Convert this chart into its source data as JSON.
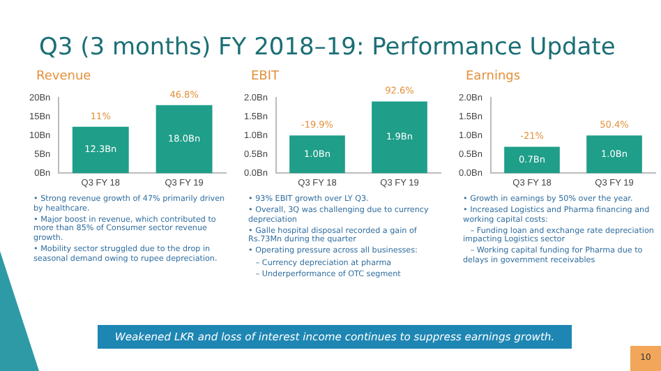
{
  "chart_data": [
    {
      "type": "other",
      "title": "Q3 (3 months) FY 2018–19: Performance Update",
      "annotations": [
        "Weakened LKR and loss of interest income continues to suppress earnings growth.",
        "10"
      ]
    },
    {
      "type": "bar",
      "title": "Revenue",
      "categories": [
        "Q3 FY 18",
        "Q3 FY 19"
      ],
      "values": [
        12.3,
        18.0
      ],
      "color": "#1f9e89",
      "ylim": [
        0,
        20
      ],
      "yticks": [
        {
          "value": 0,
          "label": "0Bn"
        },
        {
          "value": 5,
          "label": "5Bn"
        },
        {
          "value": 10,
          "label": "10Bn"
        },
        {
          "value": 15,
          "label": "15Bn"
        },
        {
          "value": 20,
          "label": "20Bn"
        }
      ],
      "value_labels": [
        "12.3Bn",
        "18.0Bn"
      ],
      "grid": false,
      "legend": false,
      "annotations": [
        {
          "text": "11%",
          "x": "Q3 FY 18",
          "y": 12.3
        },
        {
          "text": "46.8%",
          "x": "Q3 FY 19",
          "y": 18.0
        },
        "• Strong revenue growth of 47% primarily driven by healthcare.",
        "• Major boost in revenue, which contributed to more than 85% of Consumer sector revenue growth.",
        "• Mobility sector struggled due to the drop in seasonal demand owing to rupee depreciation."
      ]
    },
    {
      "type": "bar",
      "title": "EBIT",
      "categories": [
        "Q3 FY 18",
        "Q3 FY 19"
      ],
      "values": [
        1.0,
        1.9
      ],
      "color": "#1f9e89",
      "ylim": [
        0,
        2
      ],
      "yticks": [
        {
          "value": 0,
          "label": "0.0Bn"
        },
        {
          "value": 0.5,
          "label": "0.5Bn"
        },
        {
          "value": 1,
          "label": "1.0Bn"
        },
        {
          "value": 1.5,
          "label": "1.5Bn"
        },
        {
          "value": 2,
          "label": "2.0Bn"
        }
      ],
      "value_labels": [
        "1.0Bn",
        "1.9Bn"
      ],
      "grid": false,
      "legend": false,
      "annotations": [
        {
          "text": "-19.9%",
          "x": "Q3 FY 18",
          "y": 1.0
        },
        {
          "text": "92.6%",
          "x": "Q3 FY 19",
          "y": 1.9
        },
        "• 93% EBIT growth over LY Q3.",
        "• Overall, 3Q was challenging due to currency depreciation",
        "• Galle hospital disposal recorded a gain of Rs.73Mn during the quarter",
        "• Operating pressure across all businesses:",
        "   – Currency depreciation at pharma",
        "   – Underperformance of OTC segment"
      ]
    },
    {
      "type": "bar",
      "title": "Earnings",
      "categories": [
        "Q3 FY 18",
        "Q3 FY 19"
      ],
      "values": [
        0.7,
        1.0
      ],
      "color": "#1f9e89",
      "ylim": [
        0,
        2
      ],
      "yticks": [
        {
          "value": 0,
          "label": "0.0Bn"
        },
        {
          "value": 0.5,
          "label": "0.5Bn"
        },
        {
          "value": 1,
          "label": "1.0Bn"
        },
        {
          "value": 1.5,
          "label": "1.5Bn"
        },
        {
          "value": 2,
          "label": "2.0Bn"
        }
      ],
      "value_labels": [
        "0.7Bn",
        "1.0Bn"
      ],
      "grid": false,
      "legend": false,
      "annotations": [
        {
          "text": "-21%",
          "x": "Q3 FY 18",
          "y": 0.7
        },
        {
          "text": "50.4%",
          "x": "Q3 FY 19",
          "y": 1.0
        },
        "• Growth in earnings by 50% over the year.",
        "• Increased Logistics and Pharma financing and working capital costs:",
        "   – Funding loan and exchange rate depreciation impacting Logistics sector",
        "   – Working capital funding for Pharma due to delays in government receivables"
      ]
    }
  ]
}
